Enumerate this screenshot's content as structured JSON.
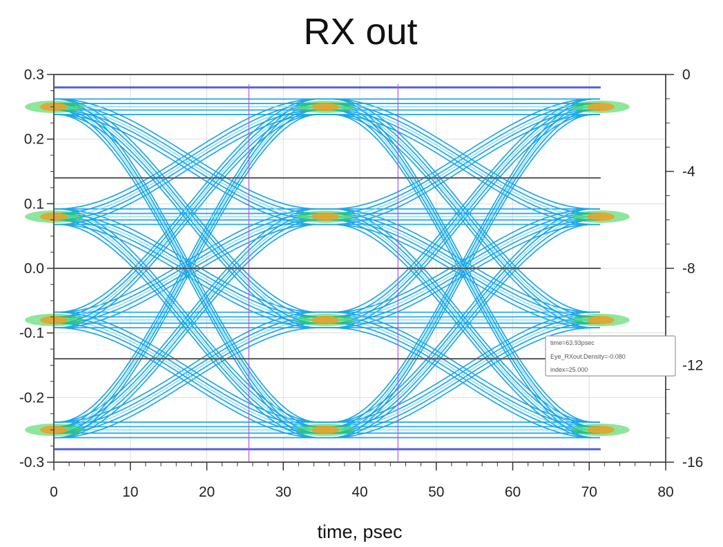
{
  "chart_data": {
    "type": "eye-diagram",
    "title": "RX out",
    "xlabel": "time, psec",
    "ylabel": "",
    "xlim": [
      0,
      80
    ],
    "ylim": [
      -0.3,
      0.3
    ],
    "y2lim": [
      -16,
      0
    ],
    "x_ticks": [
      "0",
      "10",
      "20",
      "30",
      "40",
      "50",
      "60",
      "70",
      "80"
    ],
    "y_ticks": [
      "0.3",
      "0.2",
      "0.1",
      "0.0",
      "-0.1",
      "-0.2",
      "-0.3"
    ],
    "y2_ticks": [
      "0",
      "-4",
      "-8",
      "-12",
      "-16"
    ],
    "symbol_levels": [
      -0.25,
      -0.08,
      0.08,
      0.25
    ],
    "unit_interval_ps": 36,
    "trace_end_ps": 71.5,
    "crossing_times_ps": [
      17.5,
      53.5
    ],
    "eye_centers_ps": [
      -0.5,
      35.5,
      71.5
    ],
    "threshold_levels": [
      0.14,
      0.0,
      -0.14
    ],
    "marker_lines_ps": [
      25.5,
      45
    ],
    "tooltip": {
      "lines": [
        "time=63.93psec",
        "Eye_RXout.Density=-0.080",
        "index=25.000"
      ]
    },
    "colors": {
      "outer_edge": "#0b1fd4",
      "trace_base": "#1aa6e8",
      "trace_light": "#7fdcf7",
      "high_density": "#32d24a",
      "peak_density": "#f39a1b",
      "marker_line": "#b050e8",
      "threshold_line": "#555555"
    }
  }
}
